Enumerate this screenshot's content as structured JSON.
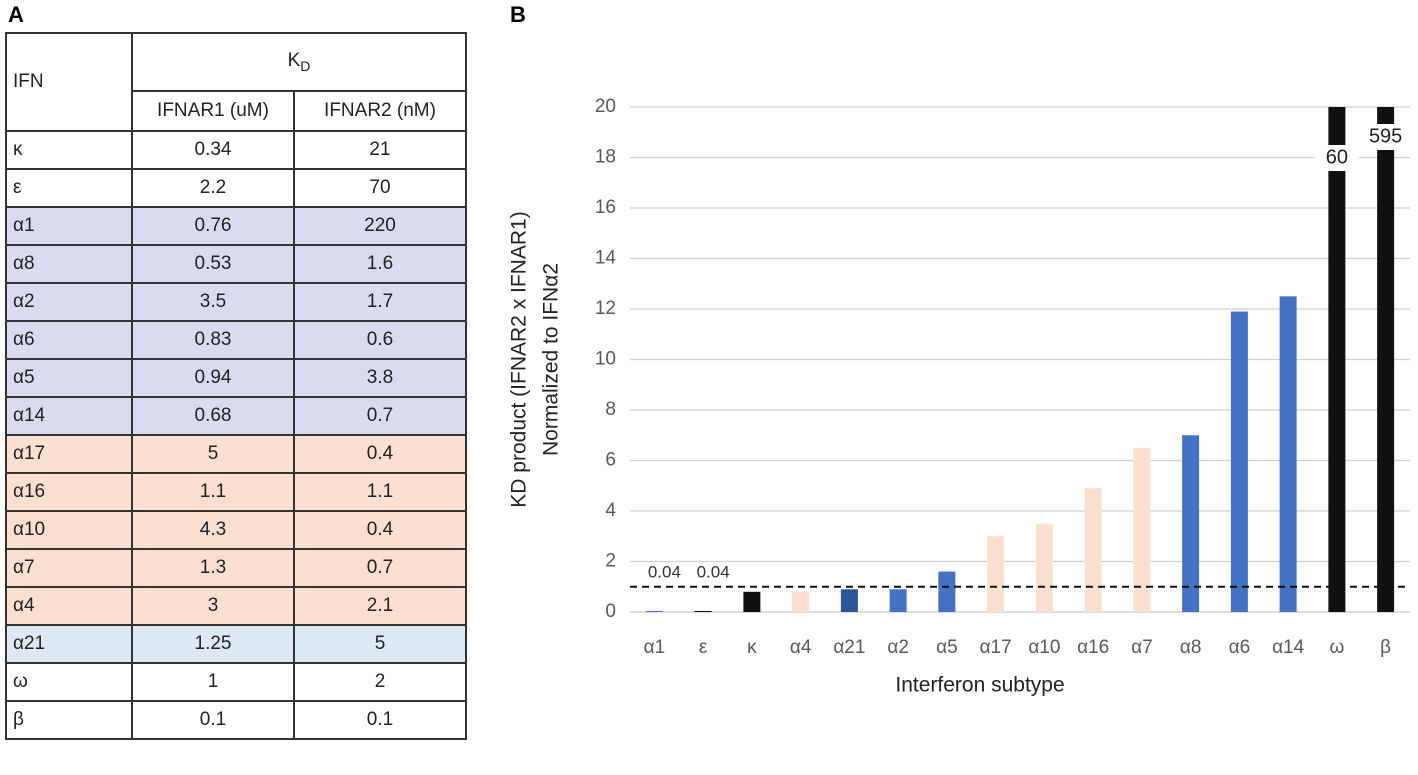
{
  "panels": [
    "A",
    "B"
  ],
  "table": {
    "header": {
      "first": "IFN",
      "group": {
        "main": "K",
        "sub": "D"
      },
      "columns": [
        "IFNAR1 (uM)",
        "IFNAR2 (nM)"
      ]
    },
    "rows": [
      [
        "κ",
        "0.34",
        "21"
      ],
      [
        "ε",
        "2.2",
        "70"
      ],
      [
        "α1",
        "0.76",
        "220"
      ],
      [
        "α8",
        "0.53",
        "1.6"
      ],
      [
        "α2",
        "3.5",
        "1.7"
      ],
      [
        "α6",
        "0.83",
        "0.6"
      ],
      [
        "α5",
        "0.94",
        "3.8"
      ],
      [
        "α14",
        "0.68",
        "0.7"
      ],
      [
        "α17",
        "5",
        "0.4"
      ],
      [
        "α16",
        "1.1",
        "1.1"
      ],
      [
        "α10",
        "4.3",
        "0.4"
      ],
      [
        "α7",
        "1.3",
        "0.7"
      ],
      [
        "α4",
        "3",
        "2.1"
      ],
      [
        "α21",
        "1.25",
        "5"
      ],
      [
        "ω",
        "1",
        "2"
      ],
      [
        "β",
        "0.1",
        "0.1"
      ]
    ],
    "row_colors": [
      "#ffffff",
      "#ffffff",
      "#d9dcf0",
      "#d9dcf0",
      "#d9dcf0",
      "#d9dcf0",
      "#d9dcf0",
      "#d9dcf0",
      "#fbe0d2",
      "#fbe0d2",
      "#fbe0d2",
      "#fbe0d2",
      "#fbe0d2",
      "#dde9f5",
      "#ffffff",
      "#ffffff"
    ]
  },
  "chart_data": {
    "type": "bar",
    "ylabel": [
      "KD product (IFNAR2 x IFNAR1)",
      "Normalized to IFNα2"
    ],
    "xlabel": "Interferon subtype",
    "categories": [
      "α1",
      "ε",
      "κ",
      "α4",
      "α21",
      "α2",
      "α5",
      "α17",
      "α10",
      "α16",
      "α7",
      "α8",
      "α6",
      "α14",
      "ω",
      "β"
    ],
    "values": [
      0.04,
      0.04,
      0.8,
      0.8,
      0.9,
      0.9,
      1.6,
      3,
      3.5,
      4.9,
      6.5,
      7,
      11.9,
      12.5,
      60,
      595
    ],
    "value_labels": [
      "0.04",
      "0.04",
      null,
      null,
      null,
      null,
      null,
      null,
      null,
      null,
      null,
      null,
      null,
      null,
      "60",
      "595"
    ],
    "colors": [
      "#4472c4",
      "#111111",
      "#111111",
      "#fbe0d0",
      "#2e5597",
      "#4472c4",
      "#4472c4",
      "#fbe0d0",
      "#fbe0d0",
      "#fbe0d0",
      "#fbe0d0",
      "#4472c4",
      "#4472c4",
      "#4472c4",
      "#111111",
      "#111111"
    ],
    "ylim": [
      0,
      20
    ],
    "yticks": [
      0,
      2,
      4,
      6,
      8,
      10,
      12,
      14,
      16,
      18,
      20
    ],
    "grid": true,
    "hline": 1
  }
}
